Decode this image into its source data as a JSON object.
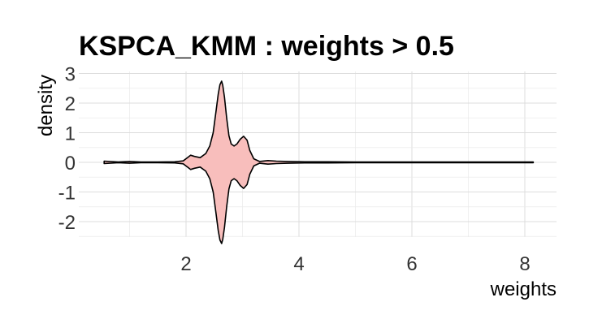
{
  "chart_data": {
    "type": "area",
    "title": "KSPCA_KMM : weights > 0.5",
    "xlabel": "weights",
    "ylabel": "density",
    "x_ticks": [
      "2",
      "4",
      "6",
      "8"
    ],
    "y_ticks": [
      "3",
      "2",
      "1",
      "0",
      "-1",
      "-2"
    ],
    "xlim": [
      0.5,
      8.5
    ],
    "ylim": [
      -2.6,
      3.0
    ],
    "grid": true,
    "mirrored": true,
    "fill_color": "#F8BEBC",
    "line_color": "#000000",
    "density": {
      "x": [
        0.55,
        0.8,
        1.0,
        1.2,
        1.5,
        1.8,
        1.95,
        2.02,
        2.08,
        2.15,
        2.25,
        2.35,
        2.42,
        2.48,
        2.53,
        2.57,
        2.6,
        2.63,
        2.65,
        2.68,
        2.72,
        2.76,
        2.8,
        2.85,
        2.9,
        2.96,
        3.02,
        3.08,
        3.13,
        3.2,
        3.3,
        3.45,
        3.6,
        3.8,
        4.1,
        4.5,
        5.0,
        5.6,
        6.3,
        7.0,
        7.6,
        8.15
      ],
      "y": [
        0.04,
        0.01,
        0.03,
        0.01,
        0.01,
        0.02,
        0.05,
        0.15,
        0.24,
        0.2,
        0.16,
        0.3,
        0.55,
        1.0,
        1.7,
        2.3,
        2.62,
        2.74,
        2.6,
        2.2,
        1.5,
        0.9,
        0.62,
        0.55,
        0.62,
        0.78,
        0.88,
        0.75,
        0.4,
        0.12,
        0.03,
        0.06,
        0.04,
        0.03,
        0.02,
        0.02,
        0.01,
        0.01,
        0.01,
        0.01,
        0.01,
        0.01
      ]
    }
  }
}
